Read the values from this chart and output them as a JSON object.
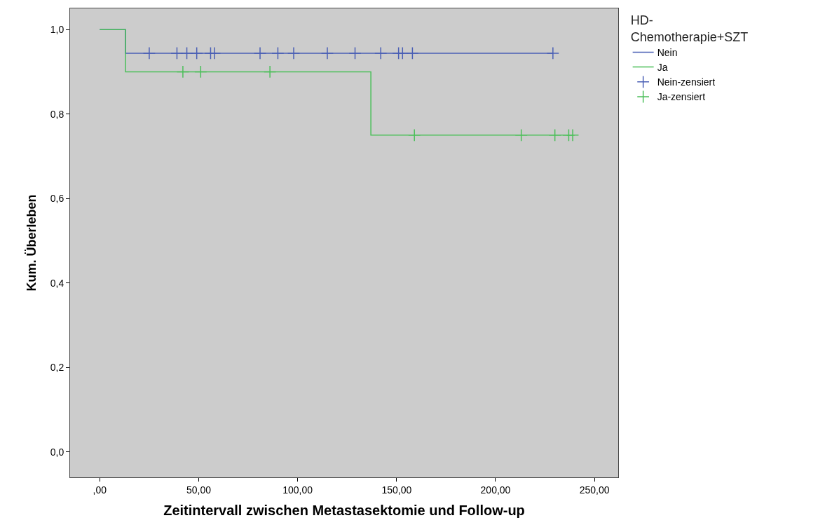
{
  "chart_data": {
    "type": "step",
    "xlabel": "Zeitintervall zwischen Metastasektomie und Follow-up",
    "ylabel": "Kum. Überleben",
    "legend_title": "HD-\nChemotherapie+SZT",
    "series": [
      {
        "name": "Nein",
        "color": "#4a5fb5",
        "x": [
          0,
          13,
          229
        ],
        "values": [
          1.0,
          0.944,
          0.944
        ]
      },
      {
        "name": "Ja",
        "color": "#4cbf5a",
        "x": [
          0,
          13,
          137,
          239
        ],
        "values": [
          1.0,
          0.9,
          0.75,
          0.75
        ]
      },
      {
        "name": "Nein-zensiert",
        "type": "scatter",
        "marker": "cross",
        "color": "#4a5fb5",
        "x": [
          25,
          39,
          44,
          49,
          56,
          58,
          81,
          90,
          98,
          115,
          129,
          142,
          151,
          153,
          158,
          229
        ],
        "values": [
          0.944,
          0.944,
          0.944,
          0.944,
          0.944,
          0.944,
          0.944,
          0.944,
          0.944,
          0.944,
          0.944,
          0.944,
          0.944,
          0.944,
          0.944,
          0.944
        ]
      },
      {
        "name": "Ja-zensiert",
        "type": "scatter",
        "marker": "cross",
        "color": "#4cbf5a",
        "x": [
          42,
          51,
          86,
          159,
          213,
          230,
          237,
          239
        ],
        "values": [
          0.9,
          0.9,
          0.9,
          0.75,
          0.75,
          0.75,
          0.75,
          0.75
        ]
      }
    ],
    "xlim": [
      -15,
      262
    ],
    "xticks": [
      {
        "value": 0,
        "label": ",00"
      },
      {
        "value": 50,
        "label": "50,00"
      },
      {
        "value": 100,
        "label": "100,00"
      },
      {
        "value": 150,
        "label": "150,00"
      },
      {
        "value": 200,
        "label": "200,00"
      },
      {
        "value": 250,
        "label": "250,00"
      }
    ],
    "ylim": [
      -0.06,
      1.05
    ],
    "yticks": [
      {
        "value": 0,
        "label": "0,0"
      },
      {
        "value": 0.2,
        "label": "0,2"
      },
      {
        "value": 0.4,
        "label": "0,4"
      },
      {
        "value": 0.6,
        "label": "0,6"
      },
      {
        "value": 0.8,
        "label": "0,8"
      },
      {
        "value": 1.0,
        "label": "1,0"
      }
    ],
    "grid": false,
    "legend": "right"
  }
}
